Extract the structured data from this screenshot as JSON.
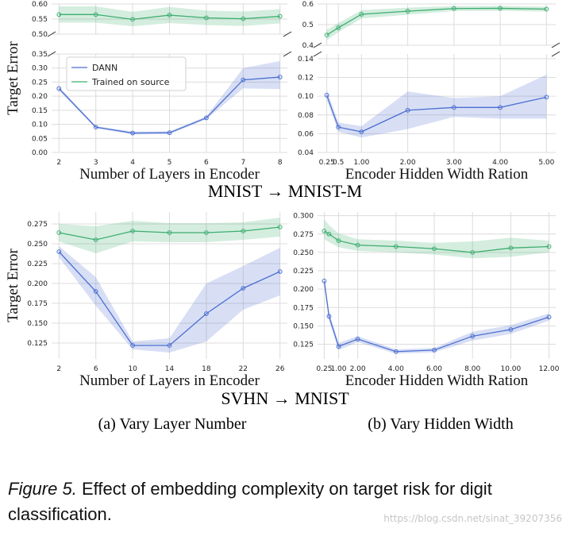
{
  "chart_data": [
    {
      "id": "mnist_layers",
      "type": "line",
      "broken_axis": true,
      "xlabel": "Number of Layers in Encoder",
      "ylabel": "Target Error",
      "x": [
        2,
        3,
        4,
        5,
        6,
        7,
        8
      ],
      "x_tick_labels": [
        "2",
        "3",
        "4",
        "5",
        "6",
        "7",
        "8"
      ],
      "xlim": [
        1.8,
        8.2
      ],
      "upper": {
        "ylim": [
          0.5,
          0.6
        ],
        "yticks": [
          "0.50",
          "0.55",
          "0.60"
        ]
      },
      "lower": {
        "ylim": [
          0.0,
          0.35
        ],
        "yticks": [
          "0.00",
          "0.05",
          "0.10",
          "0.15",
          "0.20",
          "0.25",
          "0.30",
          "0.35"
        ]
      },
      "legend": "upper-left",
      "series": [
        {
          "name": "DANN",
          "color": "#4c6fd1",
          "panel": "lower",
          "values": [
            0.227,
            0.09,
            0.069,
            0.07,
            0.123,
            0.258,
            0.268
          ],
          "lo": [
            0.22,
            0.086,
            0.064,
            0.065,
            0.118,
            0.228,
            0.225
          ],
          "hi": [
            0.234,
            0.094,
            0.074,
            0.075,
            0.128,
            0.3,
            0.325
          ]
        },
        {
          "name": "Trained on source",
          "color": "#3dae6f",
          "panel": "upper",
          "values": [
            0.565,
            0.565,
            0.549,
            0.563,
            0.554,
            0.551,
            0.559
          ],
          "lo": [
            0.538,
            0.538,
            0.526,
            0.537,
            0.53,
            0.527,
            0.536
          ],
          "hi": [
            0.592,
            0.592,
            0.574,
            0.59,
            0.578,
            0.575,
            0.583
          ]
        }
      ]
    },
    {
      "id": "mnist_width",
      "type": "line",
      "broken_axis": true,
      "xlabel": "Encoder Hidden Width Ration",
      "ylabel": "",
      "x": [
        0.25,
        0.5,
        1.0,
        2.0,
        3.0,
        4.0,
        5.0
      ],
      "x_tick_values": [
        0.25,
        0.5,
        1.0,
        2.0,
        3.0,
        4.0,
        5.0
      ],
      "x_tick_labels": [
        "0.25",
        "0.5",
        "1.00",
        "2.00",
        "3.00",
        "4.00",
        "5.00"
      ],
      "xlim": [
        0.05,
        5.2
      ],
      "upper": {
        "ylim": [
          0.4,
          0.6
        ],
        "yticks": [
          "0.4",
          "0.5",
          "0.6"
        ]
      },
      "lower": {
        "ylim": [
          0.04,
          0.145
        ],
        "yticks": [
          "0.04",
          "0.06",
          "0.08",
          "0.10",
          "0.12",
          "0.14"
        ]
      },
      "series": [
        {
          "name": "DANN",
          "color": "#4c6fd1",
          "panel": "lower",
          "values": [
            0.101,
            0.067,
            0.062,
            0.085,
            0.088,
            0.088,
            0.099
          ],
          "lo": [
            0.096,
            0.062,
            0.056,
            0.065,
            0.078,
            0.076,
            0.076
          ],
          "hi": [
            0.106,
            0.072,
            0.068,
            0.105,
            0.098,
            0.1,
            0.123
          ]
        },
        {
          "name": "Trained on source",
          "color": "#3dae6f",
          "panel": "upper",
          "values": [
            0.45,
            0.485,
            0.55,
            0.565,
            0.578,
            0.579,
            0.575
          ],
          "lo": [
            0.425,
            0.463,
            0.53,
            0.548,
            0.566,
            0.567,
            0.563
          ],
          "hi": [
            0.475,
            0.507,
            0.57,
            0.582,
            0.59,
            0.591,
            0.587
          ]
        }
      ]
    },
    {
      "id": "svhn_layers",
      "type": "line",
      "broken_axis": false,
      "xlabel": "Number of Layers in Encoder",
      "ylabel": "Target Error",
      "x": [
        2,
        6,
        10,
        14,
        18,
        22,
        26
      ],
      "x_tick_labels": [
        "2",
        "6",
        "10",
        "14",
        "18",
        "22",
        "26"
      ],
      "xlim": [
        1.2,
        26.8
      ],
      "ylim": [
        0.105,
        0.29
      ],
      "yticks": [
        "0.125",
        "0.150",
        "0.175",
        "0.200",
        "0.225",
        "0.250",
        "0.275"
      ],
      "series": [
        {
          "name": "DANN",
          "color": "#4c6fd1",
          "values": [
            0.24,
            0.19,
            0.122,
            0.122,
            0.162,
            0.194,
            0.215
          ],
          "lo": [
            0.233,
            0.172,
            0.117,
            0.113,
            0.127,
            0.167,
            0.185
          ],
          "hi": [
            0.247,
            0.208,
            0.127,
            0.131,
            0.2,
            0.222,
            0.245
          ]
        },
        {
          "name": "Trained on source",
          "color": "#3dae6f",
          "values": [
            0.264,
            0.255,
            0.266,
            0.264,
            0.264,
            0.266,
            0.271
          ],
          "lo": [
            0.253,
            0.238,
            0.253,
            0.252,
            0.252,
            0.255,
            0.259
          ],
          "hi": [
            0.275,
            0.272,
            0.279,
            0.276,
            0.276,
            0.277,
            0.283
          ]
        }
      ]
    },
    {
      "id": "svhn_width",
      "type": "line",
      "broken_axis": false,
      "xlabel": "Encoder Hidden Width Ration",
      "ylabel": "",
      "x": [
        0.25,
        0.5,
        1.0,
        2.0,
        4.0,
        6.0,
        8.0,
        10.0,
        12.0
      ],
      "x_tick_values": [
        0.25,
        1.0,
        2.0,
        4.0,
        6.0,
        8.0,
        10.0,
        12.0
      ],
      "x_tick_labels": [
        "0.25",
        "1.00",
        "2.00",
        "4.00",
        "6.00",
        "8.00",
        "10.00",
        "12.00"
      ],
      "xlim": [
        -0.1,
        12.35
      ],
      "ylim": [
        0.105,
        0.305
      ],
      "yticks": [
        "0.125",
        "0.150",
        "0.175",
        "0.200",
        "0.225",
        "0.250",
        "0.275",
        "0.300"
      ],
      "series": [
        {
          "name": "DANN",
          "color": "#4c6fd1",
          "values": [
            0.211,
            0.163,
            0.122,
            0.132,
            0.115,
            0.117,
            0.136,
            0.145,
            0.162
          ],
          "lo": [
            0.205,
            0.157,
            0.117,
            0.128,
            0.112,
            0.114,
            0.13,
            0.139,
            0.157
          ],
          "hi": [
            0.217,
            0.169,
            0.127,
            0.136,
            0.118,
            0.12,
            0.142,
            0.151,
            0.167
          ]
        },
        {
          "name": "Trained on source",
          "color": "#3dae6f",
          "values": [
            0.279,
            0.275,
            0.266,
            0.26,
            0.258,
            0.255,
            0.25,
            0.256,
            0.258
          ],
          "lo": [
            0.268,
            0.264,
            0.257,
            0.252,
            0.25,
            0.247,
            0.242,
            0.244,
            0.25
          ],
          "hi": [
            0.295,
            0.287,
            0.276,
            0.268,
            0.266,
            0.263,
            0.265,
            0.27,
            0.266
          ]
        }
      ]
    }
  ],
  "row_titles": [
    "MNIST → MNIST-M",
    "SVHN → MNIST"
  ],
  "column_captions": [
    "(a) Vary Layer Number",
    "(b) Vary Hidden Width"
  ],
  "caption": {
    "label": "Figure 5.",
    "text": "Effect of embedding complexity on target risk for digit classification."
  },
  "watermark": "https://blog.csdn.net/sinat_39207356"
}
